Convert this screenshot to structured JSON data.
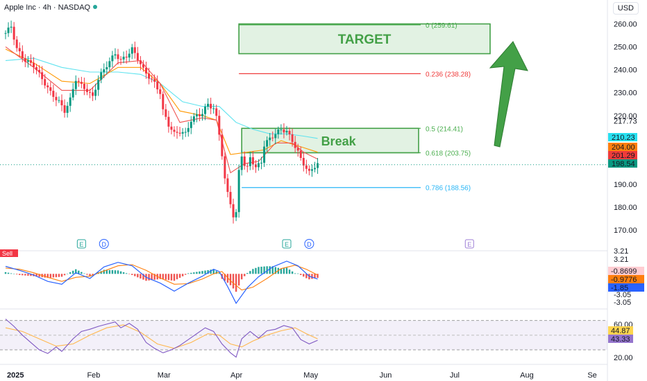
{
  "header": {
    "title": "Apple Inc · 4h · NASDAQ",
    "currency": "USD"
  },
  "chart_data": {
    "type": "candlestick",
    "price_axis": {
      "ticks": [
        260,
        250,
        240,
        230,
        220,
        190,
        180,
        170
      ],
      "extra_label": "217.73",
      "ylim": [
        167,
        265
      ]
    },
    "time_axis": {
      "ticks": [
        "2025",
        "Feb",
        "Mar",
        "Apr",
        "May",
        "Jun",
        "Jul",
        "Aug",
        "Se"
      ]
    },
    "price_path": [
      [
        0,
        256
      ],
      [
        2,
        259
      ],
      [
        4,
        249
      ],
      [
        7,
        244
      ],
      [
        10,
        242
      ],
      [
        12,
        238
      ],
      [
        14,
        234
      ],
      [
        16,
        230
      ],
      [
        19,
        226
      ],
      [
        21,
        222
      ],
      [
        23,
        227
      ],
      [
        25,
        236
      ],
      [
        27,
        233
      ],
      [
        29,
        231
      ],
      [
        31,
        228
      ],
      [
        33,
        236
      ],
      [
        36,
        242
      ],
      [
        39,
        247
      ],
      [
        41,
        244
      ],
      [
        43,
        246
      ],
      [
        45,
        249
      ],
      [
        47,
        245
      ],
      [
        49,
        240
      ],
      [
        51,
        237
      ],
      [
        53,
        234
      ],
      [
        55,
        230
      ],
      [
        56,
        222
      ],
      [
        58,
        216
      ],
      [
        60,
        212
      ],
      [
        62,
        213
      ],
      [
        64,
        212
      ],
      [
        66,
        218
      ],
      [
        68,
        220
      ],
      [
        70,
        221
      ],
      [
        72,
        225
      ],
      [
        74,
        223
      ],
      [
        75,
        219
      ],
      [
        76,
        212
      ],
      [
        77,
        203
      ],
      [
        78,
        192
      ],
      [
        79,
        186
      ],
      [
        80,
        182
      ],
      [
        81,
        176
      ],
      [
        82,
        177
      ],
      [
        83,
        196
      ],
      [
        84,
        203
      ],
      [
        85,
        198
      ],
      [
        86,
        197
      ],
      [
        87,
        202
      ],
      [
        89,
        197
      ],
      [
        91,
        200
      ],
      [
        92,
        207
      ],
      [
        94,
        210
      ],
      [
        96,
        212
      ],
      [
        98,
        214
      ],
      [
        100,
        213
      ],
      [
        102,
        209
      ],
      [
        104,
        204
      ],
      [
        105,
        201
      ],
      [
        107,
        197
      ],
      [
        108,
        195
      ],
      [
        110,
        198
      ],
      [
        111,
        199
      ]
    ],
    "ema_fast": [
      [
        0,
        250
      ],
      [
        10,
        241
      ],
      [
        20,
        231
      ],
      [
        30,
        231
      ],
      [
        40,
        243
      ],
      [
        48,
        244
      ],
      [
        55,
        234
      ],
      [
        62,
        217
      ],
      [
        70,
        219
      ],
      [
        75,
        218
      ],
      [
        80,
        195
      ],
      [
        85,
        199
      ],
      [
        90,
        200
      ],
      [
        96,
        208
      ],
      [
        102,
        208
      ],
      [
        106,
        204
      ],
      [
        111,
        201
      ]
    ],
    "ema_mid": [
      [
        0,
        249
      ],
      [
        10,
        243
      ],
      [
        20,
        235
      ],
      [
        30,
        234
      ],
      [
        40,
        241
      ],
      [
        48,
        241
      ],
      [
        55,
        234
      ],
      [
        62,
        222
      ],
      [
        70,
        220
      ],
      [
        75,
        218
      ],
      [
        80,
        203
      ],
      [
        86,
        204
      ],
      [
        92,
        205
      ],
      [
        98,
        209
      ],
      [
        106,
        206
      ],
      [
        111,
        204
      ]
    ],
    "ema_slow": [
      [
        0,
        244
      ],
      [
        10,
        245
      ],
      [
        20,
        241
      ],
      [
        30,
        239
      ],
      [
        40,
        239
      ],
      [
        48,
        238
      ],
      [
        55,
        234
      ],
      [
        63,
        226
      ],
      [
        70,
        224
      ],
      [
        76,
        224
      ],
      [
        82,
        217
      ],
      [
        88,
        214
      ],
      [
        94,
        212
      ],
      [
        100,
        212
      ],
      [
        106,
        211
      ],
      [
        111,
        210
      ]
    ],
    "last_prices": [
      {
        "value": 210.23,
        "label": "210.23",
        "color": "#26e0f0"
      },
      {
        "value": 204.0,
        "label": "204.00",
        "color": "#ff7f0e"
      },
      {
        "value": 201.29,
        "label": "201.29",
        "color": "#ef3b3b"
      },
      {
        "value": 198.54,
        "label": "198.54",
        "color": "#089981"
      }
    ],
    "fib_levels": [
      {
        "label": "0 (259.61)",
        "value": 259.61,
        "color": "#4caf50",
        "x_start": 83
      },
      {
        "label": "0.236 (238.28)",
        "value": 238.28,
        "color": "#ef3b3b",
        "x_start": 83
      },
      {
        "label": "0.5 (214.41)",
        "value": 214.41,
        "color": "#4caf50",
        "x_start": 84
      },
      {
        "label": "0.618 (203.75)",
        "value": 203.75,
        "color": "#4caf50",
        "x_start": 84
      },
      {
        "label": "0.786 (188.56)",
        "value": 188.56,
        "color": "#29b6f6",
        "x_start": 84
      }
    ],
    "annotations": [
      {
        "text": "TARGET",
        "x_from": 83,
        "x_to": 160,
        "y_top": 260,
        "y_bottom": 247
      },
      {
        "text": "Break",
        "x_from": 84,
        "x_to": 138,
        "y_top": 214.41,
        "y_bottom": 203.75
      }
    ],
    "event_markers": [
      {
        "text": "E",
        "x": 27
      },
      {
        "text": "D",
        "x": 35
      },
      {
        "text": "E",
        "x": 100
      },
      {
        "text": "D",
        "x": 108
      },
      {
        "text": "E",
        "x": 165
      }
    ],
    "macd": {
      "label": "Sell",
      "axis_ticks": [
        "3.21",
        "3.21",
        "-3.05",
        "-3.05"
      ],
      "last_values": [
        {
          "label": "-0.8699",
          "color": "#ffcdd2"
        },
        {
          "label": "-0.9776",
          "color": "#ff7f0e"
        },
        {
          "label": "-1.85",
          "color": "#2962ff"
        }
      ],
      "fast_line": [
        [
          0,
          1.3
        ],
        [
          5,
          0.6
        ],
        [
          10,
          -0.2
        ],
        [
          15,
          -1.3
        ],
        [
          20,
          -1.8
        ],
        [
          25,
          0.2
        ],
        [
          30,
          -0.8
        ],
        [
          35,
          1.2
        ],
        [
          40,
          2.0
        ],
        [
          45,
          1.4
        ],
        [
          50,
          -0.6
        ],
        [
          55,
          -1.6
        ],
        [
          60,
          -3.0
        ],
        [
          65,
          -1.6
        ],
        [
          70,
          -0.4
        ],
        [
          74,
          0.8
        ],
        [
          76,
          0.4
        ],
        [
          79,
          -2.2
        ],
        [
          82,
          -5.1
        ],
        [
          86,
          -2.4
        ],
        [
          90,
          -0.5
        ],
        [
          95,
          1.2
        ],
        [
          100,
          2.2
        ],
        [
          104,
          1.4
        ],
        [
          108,
          -0.4
        ],
        [
          111,
          -0.9
        ]
      ],
      "slow_line": [
        [
          0,
          1.0
        ],
        [
          5,
          0.8
        ],
        [
          10,
          0.2
        ],
        [
          15,
          -0.6
        ],
        [
          20,
          -1.3
        ],
        [
          25,
          -0.6
        ],
        [
          30,
          -0.4
        ],
        [
          35,
          0.5
        ],
        [
          40,
          1.4
        ],
        [
          45,
          1.6
        ],
        [
          50,
          0.6
        ],
        [
          55,
          -0.7
        ],
        [
          60,
          -1.8
        ],
        [
          65,
          -1.7
        ],
        [
          70,
          -0.9
        ],
        [
          74,
          0.0
        ],
        [
          77,
          0.4
        ],
        [
          80,
          -1.2
        ],
        [
          84,
          -2.8
        ],
        [
          88,
          -2.3
        ],
        [
          93,
          -0.8
        ],
        [
          98,
          0.9
        ],
        [
          103,
          1.5
        ],
        [
          107,
          0.8
        ],
        [
          111,
          -0.2
        ]
      ],
      "ylim": [
        -5.6,
        4.0
      ]
    },
    "rsi": {
      "axis_ticks": [
        "60.00",
        "20.00"
      ],
      "last_values": [
        {
          "label": "44.87",
          "color": "#ffd54f"
        },
        {
          "label": "43.33",
          "color": "#9575cd"
        }
      ],
      "rsi_line": [
        [
          0,
          72
        ],
        [
          3,
          62
        ],
        [
          6,
          50
        ],
        [
          9,
          40
        ],
        [
          12,
          30
        ],
        [
          15,
          25
        ],
        [
          18,
          34
        ],
        [
          20,
          28
        ],
        [
          24,
          45
        ],
        [
          27,
          55
        ],
        [
          30,
          58
        ],
        [
          33,
          62
        ],
        [
          36,
          65
        ],
        [
          39,
          68
        ],
        [
          41,
          60
        ],
        [
          44,
          66
        ],
        [
          47,
          58
        ],
        [
          50,
          40
        ],
        [
          53,
          32
        ],
        [
          56,
          26
        ],
        [
          59,
          30
        ],
        [
          62,
          36
        ],
        [
          65,
          44
        ],
        [
          68,
          52
        ],
        [
          71,
          60
        ],
        [
          74,
          55
        ],
        [
          77,
          38
        ],
        [
          80,
          26
        ],
        [
          82,
          20
        ],
        [
          84,
          45
        ],
        [
          87,
          55
        ],
        [
          90,
          46
        ],
        [
          93,
          56
        ],
        [
          96,
          58
        ],
        [
          99,
          63
        ],
        [
          102,
          60
        ],
        [
          105,
          44
        ],
        [
          108,
          38
        ],
        [
          111,
          43
        ]
      ],
      "ma_line": [
        [
          0,
          60
        ],
        [
          6,
          55
        ],
        [
          12,
          45
        ],
        [
          18,
          35
        ],
        [
          24,
          38
        ],
        [
          30,
          50
        ],
        [
          36,
          60
        ],
        [
          42,
          64
        ],
        [
          48,
          54
        ],
        [
          54,
          38
        ],
        [
          60,
          32
        ],
        [
          66,
          40
        ],
        [
          72,
          52
        ],
        [
          76,
          50
        ],
        [
          80,
          38
        ],
        [
          84,
          34
        ],
        [
          88,
          42
        ],
        [
          93,
          50
        ],
        [
          98,
          56
        ],
        [
          103,
          60
        ],
        [
          107,
          52
        ],
        [
          111,
          45
        ]
      ],
      "ylim": [
        14,
        80
      ]
    }
  }
}
